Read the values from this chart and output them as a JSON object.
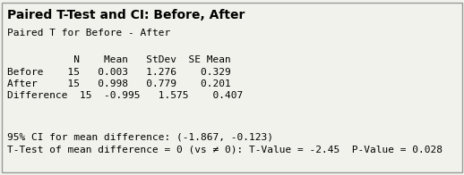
{
  "title": "Paired T-Test and CI: Before, After",
  "subtitle": "Paired T for Before - After",
  "header_line": "           N    Mean   StDev  SE Mean",
  "row1": "Before    15   0.003   1.276    0.329",
  "row2": "After     15   0.998   0.779    0.201",
  "row3": "Difference  15  -0.995   1.575    0.407",
  "footer1": "95% CI for mean difference: (-1.867, -0.123)",
  "footer2": "T-Test of mean difference = 0 (vs ≠ 0): T-Value = -2.45  P-Value = 0.028",
  "bg_color": "#f2f2ec",
  "title_color": "#000000",
  "text_color": "#000000",
  "border_color": "#999999",
  "fig_width": 5.18,
  "fig_height": 1.96,
  "dpi": 100
}
